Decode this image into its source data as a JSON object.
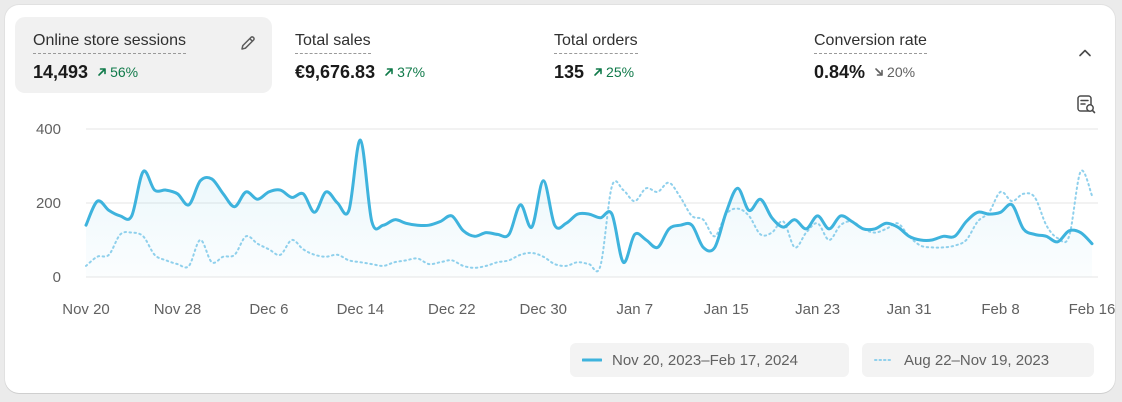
{
  "metrics": [
    {
      "label": "Online store sessions",
      "value": "14,493",
      "delta": "56%",
      "direction": "up",
      "selected": true
    },
    {
      "label": "Total sales",
      "value": "€9,676.83",
      "delta": "37%",
      "direction": "up",
      "selected": false
    },
    {
      "label": "Total orders",
      "value": "135",
      "delta": "25%",
      "direction": "up",
      "selected": false
    },
    {
      "label": "Conversion rate",
      "value": "0.84%",
      "delta": "20%",
      "direction": "down",
      "selected": false
    }
  ],
  "icons": {
    "edit": "pencil-icon",
    "collapse": "chevron-up-icon",
    "annotations": "annotation-search-icon",
    "up": "arrow-up-right-icon",
    "down": "arrow-down-right-icon"
  },
  "colors": {
    "current_series": "#3eb3dd",
    "previous_series": "#8fd0ec",
    "positive": "#107a4a",
    "neutral": "#616161"
  },
  "legend": {
    "current": "Nov 20, 2023–Feb 17, 2024",
    "previous": "Aug 22–Nov 19, 2023"
  },
  "chart_data": {
    "type": "line",
    "y_ticks": [
      0,
      200,
      400
    ],
    "ylim": [
      0,
      400
    ],
    "x_tick_labels": [
      "Nov 20",
      "Nov 28",
      "Dec 6",
      "Dec 14",
      "Dec 22",
      "Dec 30",
      "Jan 7",
      "Jan 15",
      "Jan 23",
      "Jan 31",
      "Feb 8",
      "Feb 16"
    ],
    "x_tick_index": [
      0,
      8,
      16,
      24,
      32,
      40,
      48,
      56,
      64,
      72,
      80,
      88
    ],
    "grid": true,
    "legend_position": "bottom-right",
    "series": [
      {
        "name": "Nov 20, 2023–Feb 17, 2024",
        "style": "solid",
        "values": [
          140,
          205,
          180,
          165,
          165,
          285,
          235,
          235,
          225,
          195,
          260,
          265,
          225,
          190,
          230,
          210,
          230,
          235,
          215,
          225,
          175,
          230,
          200,
          180,
          370,
          150,
          140,
          155,
          145,
          140,
          140,
          150,
          165,
          125,
          110,
          120,
          115,
          115,
          195,
          135,
          260,
          140,
          145,
          170,
          170,
          160,
          170,
          40,
          115,
          100,
          80,
          130,
          140,
          140,
          80,
          80,
          175,
          240,
          180,
          210,
          160,
          135,
          155,
          130,
          165,
          130,
          165,
          150,
          130,
          130,
          145,
          135,
          110,
          100,
          100,
          110,
          110,
          150,
          175,
          170,
          175,
          195,
          130,
          115,
          110,
          95,
          125,
          120,
          90
        ]
      },
      {
        "name": "Aug 22–Nov 19, 2023",
        "style": "dotted",
        "values": [
          30,
          55,
          60,
          115,
          120,
          110,
          60,
          45,
          35,
          30,
          100,
          40,
          55,
          60,
          110,
          90,
          75,
          60,
          100,
          75,
          60,
          55,
          60,
          45,
          40,
          35,
          30,
          40,
          45,
          50,
          35,
          40,
          45,
          30,
          25,
          30,
          40,
          45,
          60,
          65,
          55,
          35,
          30,
          40,
          35,
          30,
          245,
          235,
          205,
          240,
          230,
          255,
          215,
          165,
          155,
          110,
          170,
          185,
          165,
          115,
          120,
          150,
          80,
          120,
          145,
          100,
          140,
          150,
          130,
          120,
          130,
          145,
          110,
          85,
          80,
          80,
          85,
          100,
          150,
          175,
          230,
          205,
          225,
          215,
          140,
          105,
          110,
          285,
          220
        ]
      }
    ]
  }
}
